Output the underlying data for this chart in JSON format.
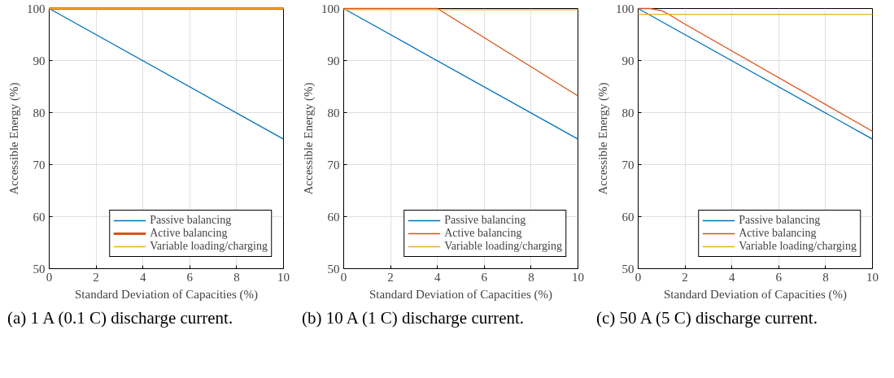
{
  "chart_data": [
    {
      "type": "line",
      "xlabel": "Standard Deviation of Capacities (%)",
      "ylabel": "Accessible Energy (%)",
      "xlim": [
        0,
        10
      ],
      "ylim": [
        50,
        100
      ],
      "xticks": [
        0,
        2,
        4,
        6,
        8,
        10
      ],
      "yticks": [
        50,
        60,
        70,
        80,
        90,
        100
      ],
      "grid": true,
      "legend": "bottom right",
      "annotations": [
        "(a) 1 A (0.1 C) discharge current."
      ],
      "series": [
        {
          "name": "Passive balancing",
          "color": "#0072bd",
          "x": [
            0,
            10
          ],
          "values": [
            100,
            74.9
          ]
        },
        {
          "name": "Active balancing",
          "color": "#d95319",
          "x": [
            0,
            10
          ],
          "values": [
            100,
            100
          ]
        },
        {
          "name": "Variable loading/charging",
          "color": "#edb120",
          "x": [
            0,
            10
          ],
          "values": [
            100,
            100
          ]
        }
      ]
    },
    {
      "type": "line",
      "xlabel": "Standard Deviation of Capacities (%)",
      "ylabel": "Accessible Energy (%)",
      "xlim": [
        0,
        10
      ],
      "ylim": [
        50,
        100
      ],
      "xticks": [
        0,
        2,
        4,
        6,
        8,
        10
      ],
      "yticks": [
        50,
        60,
        70,
        80,
        90,
        100
      ],
      "grid": true,
      "legend": "bottom right",
      "annotations": [
        "(b) 10 A (1 C) discharge current."
      ],
      "series": [
        {
          "name": "Passive balancing",
          "color": "#0072bd",
          "x": [
            0,
            10
          ],
          "values": [
            100,
            74.9
          ]
        },
        {
          "name": "Active balancing",
          "color": "#d95319",
          "x": [
            0,
            4,
            10
          ],
          "values": [
            100,
            100,
            83.2
          ]
        },
        {
          "name": "Variable loading/charging",
          "color": "#edb120",
          "x": [
            0,
            10
          ],
          "values": [
            99.8,
            99.8
          ]
        }
      ]
    },
    {
      "type": "line",
      "xlabel": "Standard Deviation of Capacities (%)",
      "ylabel": "Accessible Energy (%)",
      "xlim": [
        0,
        10
      ],
      "ylim": [
        50,
        100
      ],
      "xticks": [
        0,
        2,
        4,
        6,
        8,
        10
      ],
      "yticks": [
        50,
        60,
        70,
        80,
        90,
        100
      ],
      "grid": true,
      "legend": "bottom right",
      "annotations": [
        "(c) 50 A (5 C) discharge current."
      ],
      "series": [
        {
          "name": "Passive balancing",
          "color": "#0072bd",
          "x": [
            0,
            10
          ],
          "values": [
            100,
            74.9
          ]
        },
        {
          "name": "Active balancing",
          "color": "#d95319",
          "x": [
            0,
            0.5,
            1,
            1.3,
            2,
            10
          ],
          "values": [
            100,
            100,
            99.6,
            98.9,
            97.0,
            76.4
          ]
        },
        {
          "name": "Variable loading/charging",
          "color": "#edb120",
          "x": [
            0,
            10
          ],
          "values": [
            98.9,
            98.9
          ]
        }
      ]
    }
  ]
}
